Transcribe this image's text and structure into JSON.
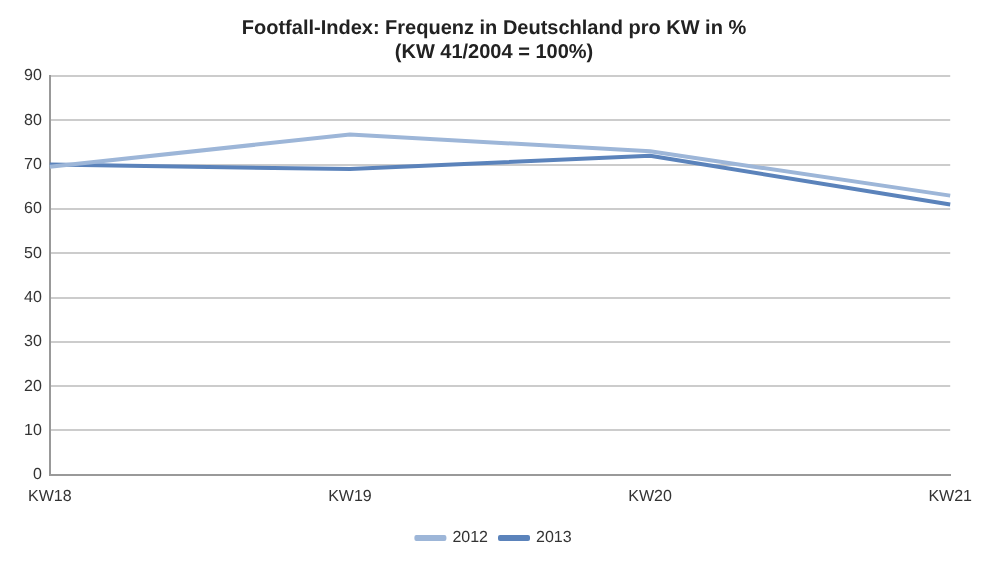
{
  "chart_data": {
    "type": "line",
    "title": [
      "Footfall-Index: Frequenz in Deutschland pro KW in %",
      "(KW 41/2004 = 100%)"
    ],
    "categories": [
      "KW18",
      "KW19",
      "KW20",
      "KW21"
    ],
    "series": [
      {
        "name": "2012",
        "color": "#9db6d8",
        "values": [
          69.5,
          76.8,
          73,
          63
        ]
      },
      {
        "name": "2013",
        "color": "#5b83bb",
        "values": [
          70,
          69,
          72,
          61
        ]
      }
    ],
    "ylim": [
      0,
      90
    ],
    "yticks": [
      0,
      10,
      20,
      30,
      40,
      50,
      60,
      70,
      80,
      90
    ],
    "grid": "y",
    "legend": "bottom",
    "marker": "none",
    "line_style": "solid"
  }
}
